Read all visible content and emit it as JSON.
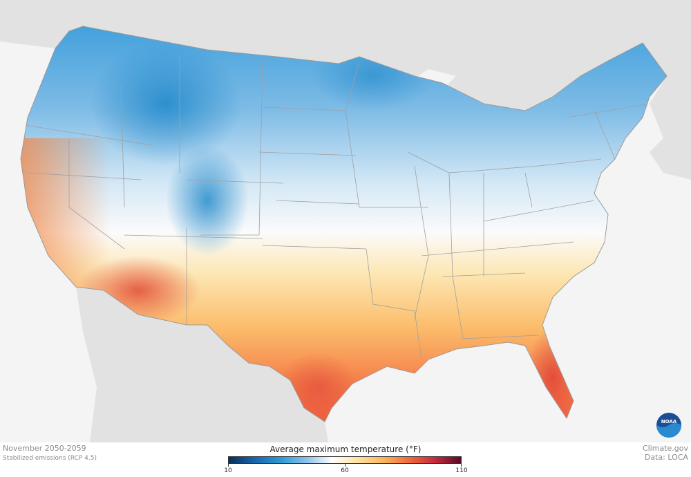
{
  "map": {
    "region": "Contiguous United States",
    "land_color": "#e2e2e2",
    "water_color": "#f4f4f4",
    "border_color": "#9a9a9a"
  },
  "footer": {
    "period": "November 2050-2059",
    "scenario": "Stabilized emissions (RCP 4.5)",
    "credit": "Climate.gov",
    "data_source": "Data: LOCA"
  },
  "legend": {
    "title": "Average maximum temperature (°F)",
    "ticks": [
      "10",
      "60",
      "110"
    ],
    "min": 10,
    "mid": 60,
    "max": 110,
    "colors": [
      "#0a2d5e",
      "#1466ad",
      "#2a9ad9",
      "#88c2ea",
      "#ffffff",
      "#fde4a0",
      "#fcb45c",
      "#f2693a",
      "#c42a3a",
      "#5a0a2a"
    ]
  },
  "logo": {
    "text": "NOAA"
  }
}
